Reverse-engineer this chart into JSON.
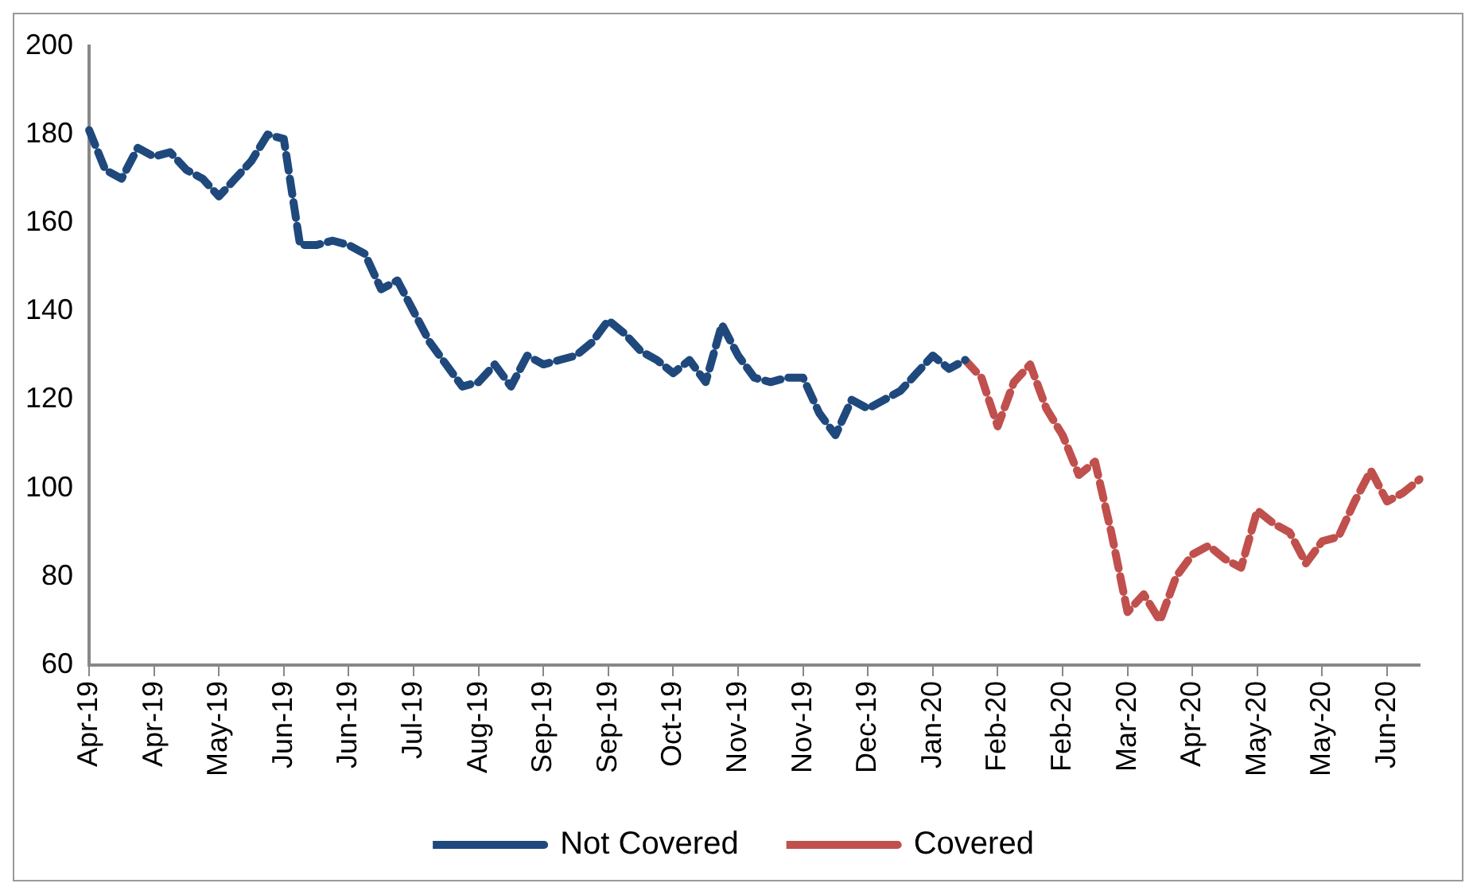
{
  "chart_data": {
    "type": "line",
    "categories": [
      "Apr-19",
      null,
      null,
      null,
      "Apr-19",
      null,
      null,
      null,
      "May-19",
      null,
      null,
      null,
      "Jun-19",
      null,
      null,
      null,
      "Jun-19",
      null,
      null,
      null,
      "Jul-19",
      null,
      null,
      null,
      "Aug-19",
      null,
      null,
      null,
      "Sep-19",
      null,
      null,
      null,
      "Sep-19",
      null,
      null,
      null,
      "Oct-19",
      null,
      null,
      null,
      "Nov-19",
      null,
      null,
      null,
      "Nov-19",
      null,
      null,
      null,
      "Dec-19",
      null,
      null,
      null,
      "Jan-20",
      null,
      null,
      null,
      "Feb-20",
      null,
      null,
      null,
      "Feb-20",
      null,
      null,
      null,
      "Mar-20",
      null,
      null,
      null,
      "Apr-20",
      null,
      null,
      null,
      "May-20",
      null,
      null,
      null,
      "May-20",
      null,
      null,
      null,
      "Jun-20",
      null,
      null
    ],
    "series": [
      {
        "name": "Not Covered",
        "color": "#1f497d",
        "values": [
          181,
          172,
          170,
          177,
          175,
          176,
          172,
          170,
          166,
          170,
          174,
          180,
          179,
          155,
          155,
          156,
          155,
          153,
          145,
          147,
          140,
          133,
          128,
          123,
          124,
          128,
          123,
          130,
          128,
          129,
          130,
          133,
          138,
          135,
          131,
          129,
          126,
          129,
          124,
          137,
          130,
          125,
          124,
          125,
          125,
          117,
          112,
          120,
          118,
          120,
          122,
          126,
          130,
          127,
          129,
          null,
          null,
          null,
          null,
          null,
          null,
          null,
          null,
          null,
          null,
          null,
          null,
          null,
          null,
          null,
          null,
          null,
          null,
          null,
          null,
          null,
          null,
          null,
          null,
          null,
          null,
          null,
          null
        ]
      },
      {
        "name": "Covered",
        "color": "#c0504d",
        "values": [
          null,
          null,
          null,
          null,
          null,
          null,
          null,
          null,
          null,
          null,
          null,
          null,
          null,
          null,
          null,
          null,
          null,
          null,
          null,
          null,
          null,
          null,
          null,
          null,
          null,
          null,
          null,
          null,
          null,
          null,
          null,
          null,
          null,
          null,
          null,
          null,
          null,
          null,
          null,
          null,
          null,
          null,
          null,
          null,
          null,
          null,
          null,
          null,
          null,
          null,
          null,
          null,
          null,
          null,
          129,
          125,
          114,
          124,
          128,
          118,
          112,
          103,
          106,
          90,
          72,
          76,
          70,
          80,
          85,
          87,
          84,
          82,
          95,
          92,
          90,
          83,
          88,
          89,
          97,
          104,
          97,
          99,
          102
        ]
      }
    ],
    "ylim": [
      60,
      200
    ],
    "yticks": [
      60,
      80,
      100,
      120,
      140,
      160,
      180,
      200
    ],
    "grid": false,
    "legend": "bottom",
    "line_style": "dashed",
    "marker": "none"
  }
}
